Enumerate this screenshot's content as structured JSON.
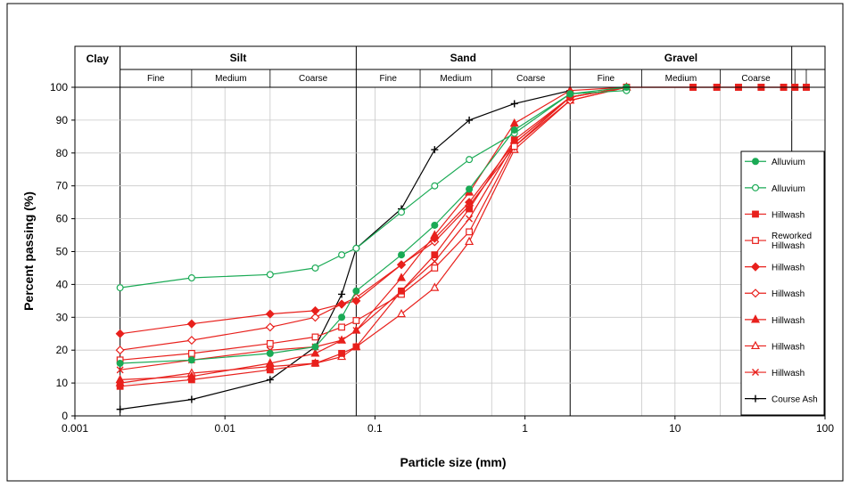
{
  "chart_data": {
    "type": "line",
    "xscale": "log",
    "xlim": [
      0.001,
      100
    ],
    "ylim": [
      0,
      100
    ],
    "xlabel": "Particle size (mm)",
    "ylabel": "Percent passing (%)",
    "grid": true,
    "legend_position": "right",
    "x_ticks": [
      "0.001",
      "0.01",
      "0.1",
      "1",
      "10",
      "100"
    ],
    "y_ticks": [
      "0",
      "10",
      "20",
      "30",
      "40",
      "50",
      "60",
      "70",
      "80",
      "90",
      "100"
    ],
    "soil_classes": [
      {
        "name": "Clay",
        "from": 0.001,
        "to": 0.002,
        "subdivisions": []
      },
      {
        "name": "Silt",
        "from": 0.002,
        "to": 0.075,
        "subdivisions": [
          {
            "name": "Fine",
            "from": 0.002,
            "to": 0.006
          },
          {
            "name": "Medium",
            "from": 0.006,
            "to": 0.02
          },
          {
            "name": "Coarse",
            "from": 0.02,
            "to": 0.075
          }
        ]
      },
      {
        "name": "Sand",
        "from": 0.075,
        "to": 2,
        "subdivisions": [
          {
            "name": "Fine",
            "from": 0.075,
            "to": 0.2
          },
          {
            "name": "Medium",
            "from": 0.2,
            "to": 0.6
          },
          {
            "name": "Coarse",
            "from": 0.6,
            "to": 2
          }
        ]
      },
      {
        "name": "Gravel",
        "from": 2,
        "to": 60,
        "subdivisions": [
          {
            "name": "Fine",
            "from": 2,
            "to": 6
          },
          {
            "name": "Medium",
            "from": 6,
            "to": 20
          },
          {
            "name": "Coarse",
            "from": 20,
            "to": 60
          }
        ]
      }
    ],
    "series": [
      {
        "name": "Alluvium",
        "color": "#1aaa55",
        "marker": "circle",
        "filled": true,
        "x": [
          0.002,
          0.006,
          0.02,
          0.04,
          0.06,
          0.075,
          0.15,
          0.25,
          0.425,
          0.85,
          2,
          4.75
        ],
        "y": [
          16,
          17,
          19,
          21,
          30,
          38,
          49,
          58,
          69,
          87,
          98,
          100
        ]
      },
      {
        "name": "Alluvium",
        "color": "#1aaa55",
        "marker": "circle",
        "filled": false,
        "x": [
          0.002,
          0.006,
          0.02,
          0.04,
          0.06,
          0.075,
          0.15,
          0.25,
          0.425,
          0.85,
          2,
          4.75
        ],
        "y": [
          39,
          42,
          43,
          45,
          49,
          51,
          62,
          70,
          78,
          86,
          98,
          99
        ]
      },
      {
        "name": "Hillwash",
        "color": "#e8201c",
        "marker": "square",
        "filled": true,
        "x": [
          0.002,
          0.006,
          0.02,
          0.04,
          0.06,
          0.075,
          0.15,
          0.25,
          0.425,
          0.85,
          2,
          4.75,
          13.2,
          19,
          26.5,
          37.5,
          53,
          63,
          75
        ],
        "y": [
          9,
          11,
          14,
          16,
          19,
          21,
          38,
          49,
          63,
          84,
          97,
          100,
          100,
          100,
          100,
          100,
          100,
          100,
          100
        ]
      },
      {
        "name": "Reworked Hillwash",
        "color": "#e8201c",
        "marker": "square",
        "filled": false,
        "x": [
          0.002,
          0.006,
          0.02,
          0.04,
          0.06,
          0.075,
          0.15,
          0.25,
          0.425,
          0.85,
          2,
          4.75,
          13.2,
          19,
          26.5,
          37.5,
          53,
          63,
          75
        ],
        "y": [
          17,
          19,
          22,
          24,
          27,
          29,
          37,
          45,
          56,
          82,
          97,
          100,
          100,
          100,
          100,
          100,
          100,
          100,
          100
        ]
      },
      {
        "name": "Hillwash",
        "color": "#e8201c",
        "marker": "diamond",
        "filled": true,
        "x": [
          0.002,
          0.006,
          0.02,
          0.04,
          0.06,
          0.075,
          0.15,
          0.25,
          0.425,
          0.85,
          2,
          4.75
        ],
        "y": [
          25,
          28,
          31,
          32,
          34,
          35,
          46,
          54,
          65,
          83,
          97,
          100
        ]
      },
      {
        "name": "Hillwash",
        "color": "#e8201c",
        "marker": "diamond",
        "filled": false,
        "x": [
          0.002,
          0.006,
          0.02,
          0.04,
          0.06,
          0.075,
          0.15,
          0.25,
          0.425,
          0.85,
          2,
          4.75
        ],
        "y": [
          20,
          23,
          27,
          30,
          34,
          36,
          46,
          53,
          64,
          82,
          96,
          100
        ]
      },
      {
        "name": "Hillwash",
        "color": "#e8201c",
        "marker": "triangle",
        "filled": true,
        "x": [
          0.002,
          0.006,
          0.02,
          0.04,
          0.06,
          0.075,
          0.15,
          0.25,
          0.425,
          0.85,
          2,
          4.75
        ],
        "y": [
          11,
          12,
          16,
          19,
          23,
          26,
          42,
          55,
          68,
          89,
          99,
          100
        ]
      },
      {
        "name": "Hillwash",
        "color": "#e8201c",
        "marker": "triangle",
        "filled": false,
        "x": [
          0.002,
          0.006,
          0.02,
          0.04,
          0.06,
          0.075,
          0.15,
          0.25,
          0.425,
          0.85,
          2,
          4.75
        ],
        "y": [
          10,
          13,
          15,
          16,
          18,
          21,
          31,
          39,
          53,
          81,
          96,
          100
        ]
      },
      {
        "name": "Hillwash",
        "color": "#e8201c",
        "marker": "x",
        "filled": false,
        "x": [
          0.002,
          0.006,
          0.02,
          0.04,
          0.06,
          0.075,
          0.15,
          0.25,
          0.425,
          0.85,
          2,
          4.75
        ],
        "y": [
          14,
          17,
          20,
          21,
          23,
          26,
          38,
          47,
          60,
          83,
          97,
          100
        ]
      },
      {
        "name": "Course Ash",
        "color": "#000000",
        "marker": "plus",
        "filled": false,
        "x": [
          0.002,
          0.006,
          0.02,
          0.04,
          0.06,
          0.075,
          0.15,
          0.25,
          0.425,
          0.85,
          2
        ],
        "y": [
          2,
          5,
          11,
          21,
          37,
          51,
          63,
          81,
          90,
          95,
          99
        ]
      }
    ]
  }
}
